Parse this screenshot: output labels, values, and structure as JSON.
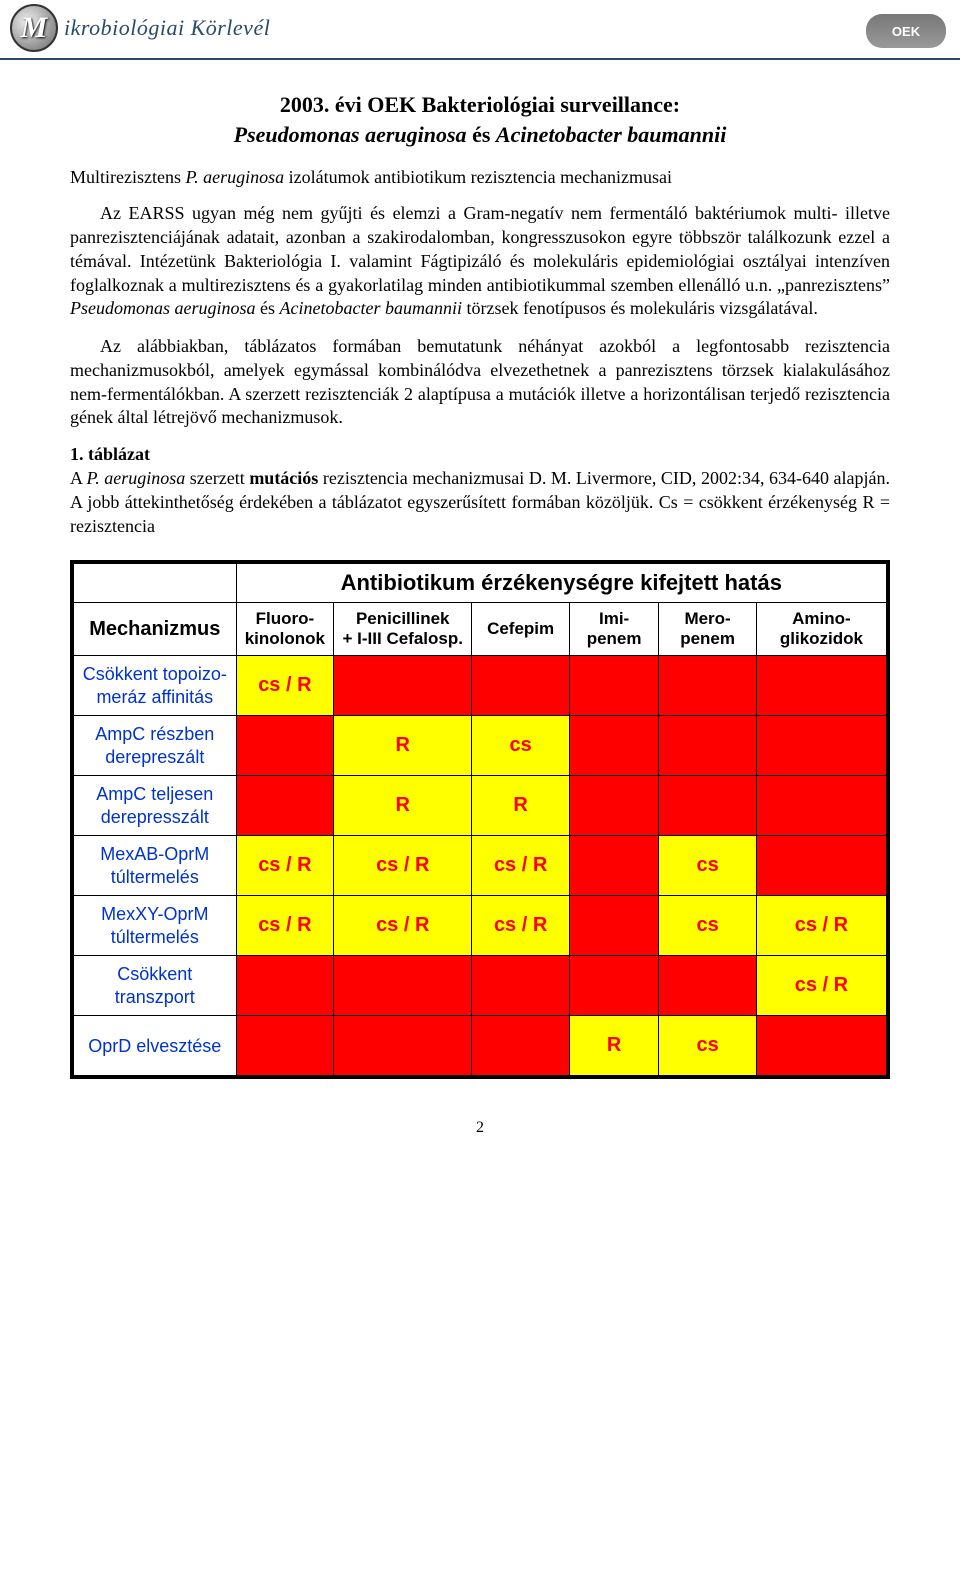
{
  "header": {
    "journal_logo_letter": "M",
    "journal_title": "ikrobiológiai Körlevél",
    "right_badge": "OEK"
  },
  "title": {
    "line1": "2003. évi OEK Bakteriológiai surveillance:",
    "line2_italic": "Pseudomonas aeruginosa",
    "line2_mid": " és ",
    "line2_italic2": "Acinetobacter baumannii"
  },
  "subheading": {
    "prefix": "Multirezisztens ",
    "italic": "P. aeruginosa",
    "suffix": " izolátumok antibiotikum rezisztencia mechanizmusai"
  },
  "para1": "Az EARSS ugyan még nem gyűjti és elemzi a Gram-negatív nem fermentáló baktériumok multi- illetve panrezisztenciájának adatait, azonban a szakirodalomban, kongresszusokon egyre többször találkozunk ezzel a témával. Intézetünk Bakteriológia I. valamint Fágtipizáló és molekuláris epidemiológiai osztályai intenzíven foglalkoznak a multirezisztens és a gyakorlatilag minden antibiotikummal szemben ellenálló u.n. „panrezisztens” ",
  "para1_it1": "Pseudomonas aeruginosa",
  "para1_mid": " és ",
  "para1_it2": "Acinetobacter baumannii",
  "para1_tail": " törzsek fenotípusos és molekuláris vizsgálatával.",
  "para2": "Az alábbiakban, táblázatos formában bemutatunk néhányat azokból a legfontosabb rezisztencia mechanizmusokból, amelyek egymással kombinálódva elvezethetnek a panrezisztens törzsek kialakulásához nem-fermentálókban. A szerzett rezisztenciák 2 alaptípusa a mutációk illetve a horizontálisan terjedő rezisztencia gének által létrejövő mechanizmusok.",
  "table_section": {
    "label": "1. táblázat",
    "text_pre": "A ",
    "text_it": "P. aeruginosa",
    "text_mid": " szerzett ",
    "text_bold": "mutációs",
    "text_post": " rezisztencia mechanizmusai D. M. Livermore, CID, 2002:34, 634-640 alapján. A jobb áttekinthetőség érdekében a táblázatot egyszerűsített formában közöljük. Cs = csökkent érzékenység R = rezisztencia"
  },
  "table": {
    "banner": "Antibiotikum érzékenységre kifejtett hatás",
    "mech_header": "Mechanizmus",
    "columns": [
      "Fluoro-\nkinolonok",
      "Penicillinek\n+ I-III Cefalosp.",
      "Cefepim",
      "Imi-\npenem",
      "Mero-\npenem",
      "Amino-\nglikozidok"
    ],
    "col_widths": [
      "20%",
      "12%",
      "17%",
      "12%",
      "11%",
      "12%",
      "16%"
    ],
    "header_bg": "#ffffff",
    "empty_bg": "#ff0000",
    "value_bg": "#ffff00",
    "value_color": "#ff0000",
    "value_fontweight": "bold",
    "mech_color": "#0033cc",
    "rows": [
      {
        "mech": "Csökkent topoizo-\nmeráz affinitás",
        "cells": [
          "cs / R",
          "",
          "",
          "",
          "",
          ""
        ]
      },
      {
        "mech": "AmpC részben\nderepreszált",
        "cells": [
          "",
          "R",
          "cs",
          "",
          "",
          ""
        ]
      },
      {
        "mech": "AmpC teljesen\nderepresszált",
        "cells": [
          "",
          "R",
          "R",
          "",
          "",
          ""
        ]
      },
      {
        "mech": "MexAB-OprM\ntúltermelés",
        "cells": [
          "cs / R",
          "cs / R",
          "cs / R",
          "",
          "cs",
          ""
        ]
      },
      {
        "mech": "MexXY-OprM\ntúltermelés",
        "cells": [
          "cs / R",
          "cs / R",
          "cs / R",
          "",
          "cs",
          "cs / R"
        ]
      },
      {
        "mech": "Csökkent\ntranszport",
        "cells": [
          "",
          "",
          "",
          "",
          "",
          "cs / R"
        ]
      },
      {
        "mech": "OprD elvesztése",
        "cells": [
          "",
          "",
          "",
          "R",
          "cs",
          ""
        ]
      }
    ]
  },
  "page_number": "2"
}
